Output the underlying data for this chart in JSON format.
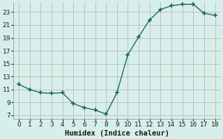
{
  "x": [
    0,
    1,
    2,
    3,
    4,
    5,
    6,
    7,
    8,
    9,
    10,
    11,
    12,
    13,
    14,
    15,
    16,
    17,
    18
  ],
  "y": [
    11.8,
    11.0,
    10.5,
    10.4,
    10.5,
    8.8,
    8.2,
    7.8,
    7.2,
    10.5,
    16.4,
    19.2,
    21.8,
    23.4,
    24.0,
    24.2,
    24.2,
    22.8,
    22.5
  ],
  "line_color": "#1a6b5a",
  "marker": "+",
  "marker_size": 4,
  "marker_lw": 1.2,
  "bg_color": "#d6efea",
  "grid_color": "#c4a8a8",
  "xlabel": "Humidex (Indice chaleur)",
  "xlim": [
    -0.5,
    18.5
  ],
  "ylim": [
    6.5,
    24.5
  ],
  "yticks": [
    7,
    9,
    11,
    13,
    15,
    17,
    19,
    21,
    23
  ],
  "xticks": [
    0,
    1,
    2,
    3,
    4,
    5,
    6,
    7,
    8,
    9,
    10,
    11,
    12,
    13,
    14,
    15,
    16,
    17,
    18
  ],
  "xlabel_fontsize": 7.5,
  "tick_fontsize": 6.5,
  "linewidth": 1.0
}
